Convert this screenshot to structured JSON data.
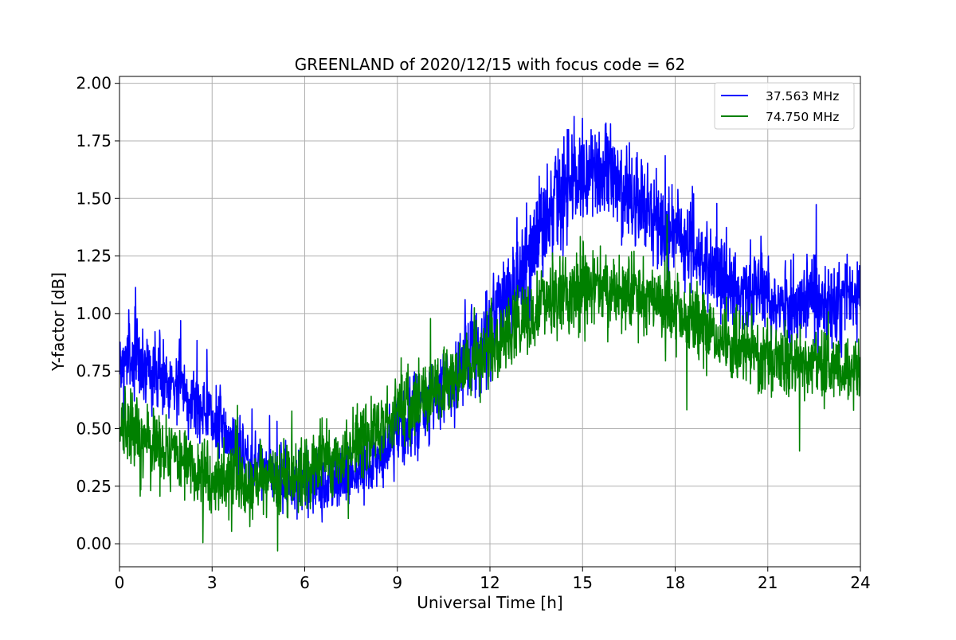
{
  "chart_data": {
    "type": "line",
    "title": "GREENLAND of 2020/12/15 with focus code = 62",
    "xlabel": "Universal Time [h]",
    "ylabel": "Y-factor [dB]",
    "xlim": [
      0,
      24
    ],
    "ylim": [
      -0.1,
      2.03
    ],
    "xticks": [
      0,
      3,
      6,
      9,
      12,
      15,
      18,
      21,
      24
    ],
    "xtick_labels": [
      "0",
      "3",
      "6",
      "9",
      "12",
      "15",
      "18",
      "21",
      "24"
    ],
    "yticks": [
      0.0,
      0.25,
      0.5,
      0.75,
      1.0,
      1.25,
      1.5,
      1.75,
      2.0
    ],
    "ytick_labels": [
      "0.00",
      "0.25",
      "0.50",
      "0.75",
      "1.00",
      "1.25",
      "1.50",
      "1.75",
      "2.00"
    ],
    "grid": true,
    "legend_position": "top-right",
    "series": [
      {
        "name": "37.563 MHz",
        "color": "#0000ff",
        "x": [
          0,
          0.5,
          1,
          1.5,
          2,
          2.5,
          3,
          3.5,
          4,
          4.5,
          5,
          5.5,
          6,
          6.5,
          7,
          7.5,
          8,
          8.5,
          9,
          9.5,
          10,
          10.5,
          11,
          11.5,
          12,
          12.5,
          13,
          13.5,
          14,
          14.5,
          15,
          15.5,
          16,
          16.5,
          17,
          17.5,
          18,
          18.5,
          19,
          19.5,
          20,
          20.5,
          21,
          21.5,
          22,
          22.5,
          23,
          23.5,
          24
        ],
        "center": [
          0.78,
          0.8,
          0.76,
          0.72,
          0.68,
          0.62,
          0.55,
          0.47,
          0.4,
          0.34,
          0.3,
          0.27,
          0.26,
          0.26,
          0.27,
          0.3,
          0.34,
          0.4,
          0.47,
          0.53,
          0.6,
          0.67,
          0.74,
          0.83,
          0.94,
          1.05,
          1.18,
          1.32,
          1.45,
          1.55,
          1.6,
          1.61,
          1.57,
          1.52,
          1.46,
          1.4,
          1.34,
          1.28,
          1.22,
          1.17,
          1.12,
          1.08,
          1.05,
          1.04,
          1.04,
          1.06,
          1.07,
          1.07,
          1.06
        ],
        "spread": [
          0.12,
          0.12,
          0.11,
          0.11,
          0.11,
          0.1,
          0.1,
          0.09,
          0.09,
          0.09,
          0.09,
          0.09,
          0.09,
          0.09,
          0.1,
          0.1,
          0.1,
          0.1,
          0.11,
          0.11,
          0.11,
          0.12,
          0.12,
          0.12,
          0.13,
          0.13,
          0.14,
          0.14,
          0.15,
          0.15,
          0.15,
          0.14,
          0.14,
          0.14,
          0.13,
          0.13,
          0.13,
          0.12,
          0.12,
          0.12,
          0.12,
          0.12,
          0.13,
          0.13,
          0.13,
          0.13,
          0.13,
          0.13,
          0.13
        ],
        "points": 2400,
        "seed": 7
      },
      {
        "name": "74.750 MHz",
        "color": "#008000",
        "x": [
          0,
          0.5,
          1,
          1.5,
          2,
          2.5,
          3,
          3.5,
          4,
          4.5,
          5,
          5.5,
          6,
          6.5,
          7,
          7.5,
          8,
          8.5,
          9,
          9.5,
          10,
          10.5,
          11,
          11.5,
          12,
          12.5,
          13,
          13.5,
          14,
          14.5,
          15,
          15.5,
          16,
          16.5,
          17,
          17.5,
          18,
          18.5,
          19,
          19.5,
          20,
          20.5,
          21,
          21.5,
          22,
          22.5,
          23,
          23.5,
          24
        ],
        "center": [
          0.5,
          0.48,
          0.44,
          0.4,
          0.36,
          0.32,
          0.29,
          0.27,
          0.26,
          0.26,
          0.27,
          0.29,
          0.31,
          0.34,
          0.38,
          0.42,
          0.47,
          0.52,
          0.57,
          0.61,
          0.65,
          0.69,
          0.73,
          0.78,
          0.84,
          0.9,
          0.96,
          1.01,
          1.05,
          1.08,
          1.1,
          1.11,
          1.11,
          1.1,
          1.08,
          1.05,
          1.01,
          0.97,
          0.93,
          0.89,
          0.86,
          0.83,
          0.8,
          0.78,
          0.77,
          0.77,
          0.77,
          0.76,
          0.75
        ],
        "spread": [
          0.1,
          0.1,
          0.1,
          0.1,
          0.1,
          0.1,
          0.1,
          0.1,
          0.1,
          0.1,
          0.1,
          0.1,
          0.1,
          0.1,
          0.1,
          0.1,
          0.1,
          0.1,
          0.1,
          0.1,
          0.1,
          0.1,
          0.1,
          0.1,
          0.1,
          0.1,
          0.1,
          0.1,
          0.11,
          0.11,
          0.11,
          0.11,
          0.11,
          0.11,
          0.11,
          0.1,
          0.1,
          0.1,
          0.1,
          0.1,
          0.1,
          0.1,
          0.1,
          0.1,
          0.1,
          0.1,
          0.1,
          0.1,
          0.1
        ],
        "points": 2400,
        "seed": 13
      }
    ]
  }
}
